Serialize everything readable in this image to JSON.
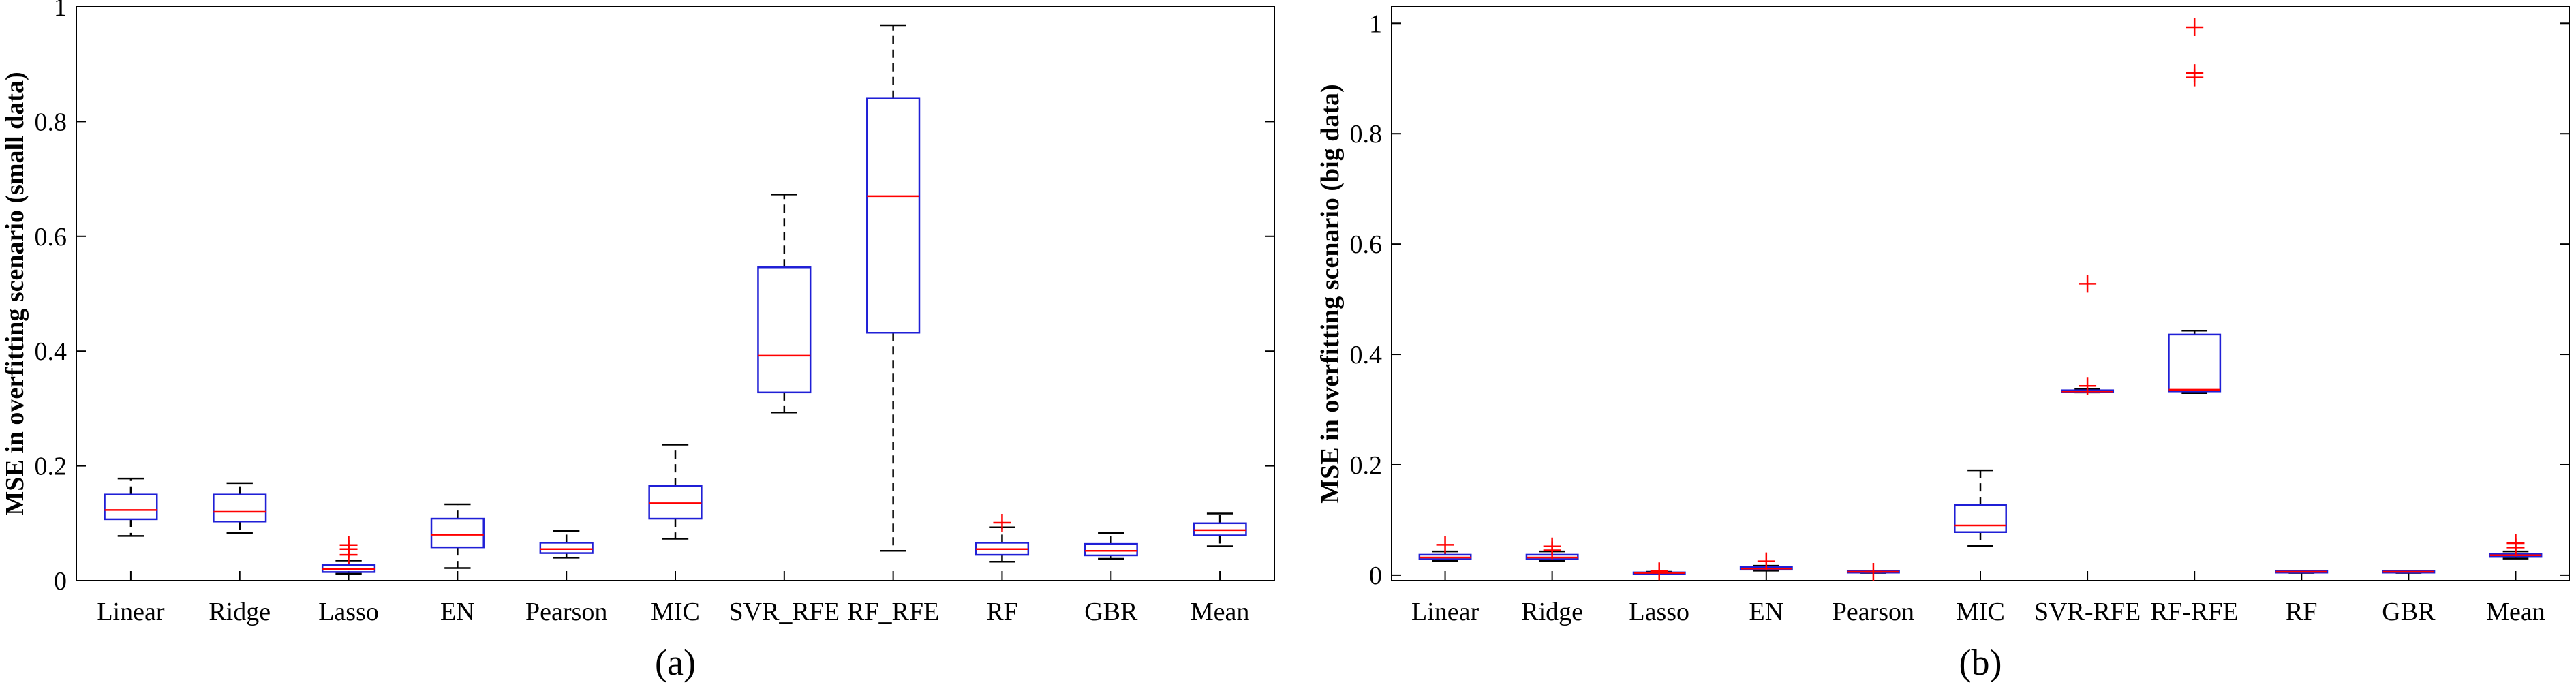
{
  "colors": {
    "box": "#1f1fd6",
    "median": "#ff0000",
    "whisker": "#000000",
    "outlier": "#ff0000"
  },
  "chart_data": [
    {
      "type": "box",
      "caption": "(a)",
      "ylabel": "MSE in overfitting scenario (small data)",
      "ylim": [
        0,
        1
      ],
      "yticks": [
        0,
        0.2,
        0.4,
        0.6,
        0.8,
        1
      ],
      "ytick_labels": [
        "0",
        "0.2",
        "0.4",
        "0.6",
        "0.8",
        "1"
      ],
      "categories": [
        "Linear",
        "Ridge",
        "Lasso",
        "EN",
        "Pearson",
        "MIC",
        "SVR_RFE",
        "RF_RFE",
        "RF",
        "GBR",
        "Mean"
      ],
      "boxes": [
        {
          "min": 0.078,
          "q1": 0.107,
          "median": 0.123,
          "q3": 0.15,
          "max": 0.178,
          "outliers": []
        },
        {
          "min": 0.083,
          "q1": 0.103,
          "median": 0.12,
          "q3": 0.15,
          "max": 0.17,
          "outliers": []
        },
        {
          "min": 0.012,
          "q1": 0.015,
          "median": 0.02,
          "q3": 0.027,
          "max": 0.035,
          "outliers": [
            0.045,
            0.055,
            0.062
          ]
        },
        {
          "min": 0.022,
          "q1": 0.058,
          "median": 0.08,
          "q3": 0.108,
          "max": 0.133,
          "outliers": []
        },
        {
          "min": 0.04,
          "q1": 0.048,
          "median": 0.055,
          "q3": 0.066,
          "max": 0.087,
          "outliers": []
        },
        {
          "min": 0.073,
          "q1": 0.108,
          "median": 0.135,
          "q3": 0.165,
          "max": 0.237,
          "outliers": []
        },
        {
          "min": 0.293,
          "q1": 0.328,
          "median": 0.392,
          "q3": 0.546,
          "max": 0.673,
          "outliers": []
        },
        {
          "min": 0.052,
          "q1": 0.432,
          "median": 0.67,
          "q3": 0.84,
          "max": 0.968,
          "outliers": []
        },
        {
          "min": 0.033,
          "q1": 0.045,
          "median": 0.055,
          "q3": 0.066,
          "max": 0.093,
          "outliers": [
            0.101
          ]
        },
        {
          "min": 0.038,
          "q1": 0.044,
          "median": 0.052,
          "q3": 0.064,
          "max": 0.083,
          "outliers": []
        },
        {
          "min": 0.06,
          "q1": 0.079,
          "median": 0.088,
          "q3": 0.1,
          "max": 0.117,
          "outliers": []
        }
      ]
    },
    {
      "type": "box",
      "caption": "(b)",
      "ylabel": "MSE in overfitting scenario (big data)",
      "ylim": [
        -0.01,
        1.03
      ],
      "yticks": [
        0,
        0.2,
        0.4,
        0.6,
        0.8,
        1
      ],
      "ytick_labels": [
        "0",
        "0.2",
        "0.4",
        "0.6",
        "0.8",
        "1"
      ],
      "categories": [
        "Linear",
        "Ridge",
        "Lasso",
        "EN",
        "Pearson",
        "MIC",
        "SVR-RFE",
        "RF-RFE",
        "RF",
        "GBR",
        "Mean"
      ],
      "boxes": [
        {
          "min": 0.026,
          "q1": 0.029,
          "median": 0.032,
          "q3": 0.037,
          "max": 0.043,
          "outliers": [
            0.055
          ]
        },
        {
          "min": 0.026,
          "q1": 0.029,
          "median": 0.032,
          "q3": 0.037,
          "max": 0.043,
          "outliers": [
            0.052,
            0.045
          ]
        },
        {
          "min": 0.002,
          "q1": 0.003,
          "median": 0.004,
          "q3": 0.005,
          "max": 0.006,
          "outliers": [
            0.007
          ]
        },
        {
          "min": 0.008,
          "q1": 0.01,
          "median": 0.012,
          "q3": 0.015,
          "max": 0.017,
          "outliers": [
            0.025
          ]
        },
        {
          "min": 0.004,
          "q1": 0.005,
          "median": 0.006,
          "q3": 0.007,
          "max": 0.008,
          "outliers": [
            0.006
          ]
        },
        {
          "min": 0.053,
          "q1": 0.078,
          "median": 0.09,
          "q3": 0.127,
          "max": 0.19,
          "outliers": []
        },
        {
          "min": 0.331,
          "q1": 0.332,
          "median": 0.333,
          "q3": 0.335,
          "max": 0.337,
          "outliers": [
            0.528,
            0.343
          ]
        },
        {
          "min": 0.33,
          "q1": 0.333,
          "median": 0.336,
          "q3": 0.436,
          "max": 0.443,
          "outliers": [
            0.993,
            0.91,
            0.902
          ]
        },
        {
          "min": 0.004,
          "q1": 0.005,
          "median": 0.006,
          "q3": 0.007,
          "max": 0.008,
          "outliers": []
        },
        {
          "min": 0.004,
          "q1": 0.005,
          "median": 0.006,
          "q3": 0.007,
          "max": 0.008,
          "outliers": []
        },
        {
          "min": 0.03,
          "q1": 0.033,
          "median": 0.036,
          "q3": 0.039,
          "max": 0.043,
          "outliers": [
            0.05,
            0.058
          ]
        }
      ]
    }
  ]
}
